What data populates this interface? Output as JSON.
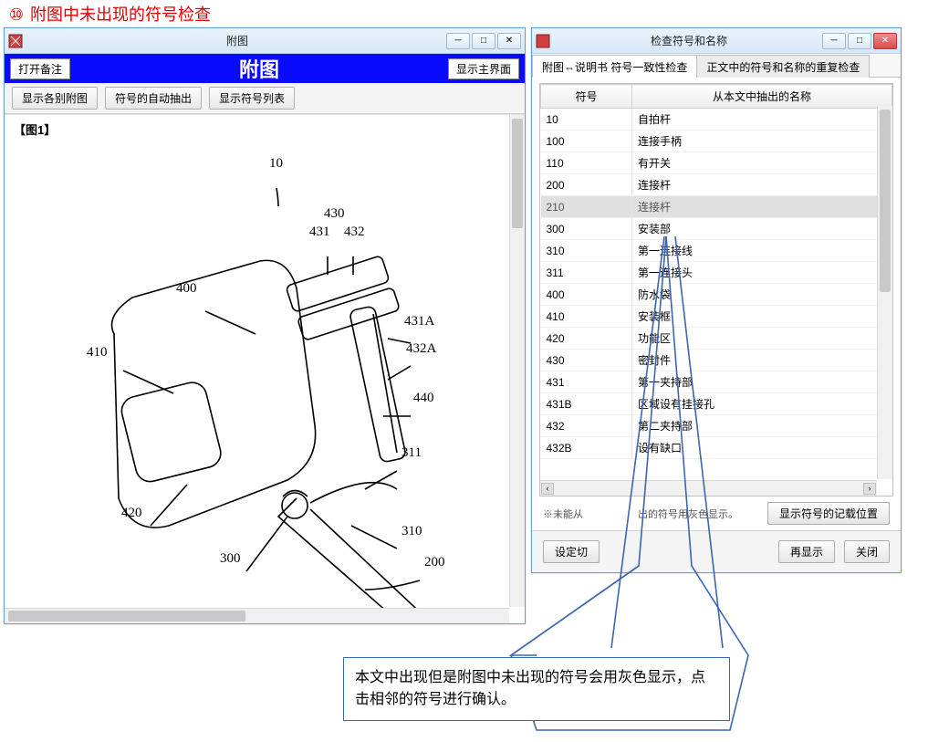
{
  "page_heading_num": "⑩",
  "page_heading_text": "附图中未出现的符号检查",
  "left_window": {
    "title": "附图",
    "open_note_btn": "打开备注",
    "big_title": "附图",
    "show_main_btn": "显示主界面",
    "toolbar": {
      "show_each": "显示各别附图",
      "auto_extract": "符号的自动抽出",
      "show_list": "显示符号列表"
    },
    "figure_label": "【图1】",
    "callouts": {
      "n10": "10",
      "n430": "430",
      "n431": "431",
      "n432": "432",
      "n400": "400",
      "n431A": "431A",
      "n432A": "432A",
      "n410": "410",
      "n440": "440",
      "n311": "311",
      "n420": "420",
      "n300": "300",
      "n310": "310",
      "n200": "200"
    }
  },
  "right_window": {
    "title": "检查符号和名称",
    "tab1": "附图⇔说明书 符号一致性检查",
    "tab2": "正文中的符号和名称的重复检查",
    "col_symbol": "符号",
    "col_name": "从本文中抽出的名称",
    "rows": [
      {
        "sym": "10",
        "name": "自拍杆",
        "grey": false
      },
      {
        "sym": "100",
        "name": "连接手柄",
        "grey": false
      },
      {
        "sym": "110",
        "name": "有开关",
        "grey": false
      },
      {
        "sym": "200",
        "name": "连接杆",
        "grey": false
      },
      {
        "sym": "210",
        "name": "连接杆",
        "grey": true
      },
      {
        "sym": "300",
        "name": "安装部",
        "grey": false
      },
      {
        "sym": "310",
        "name": "第一连接线",
        "grey": false
      },
      {
        "sym": "311",
        "name": "第一连接头",
        "grey": false
      },
      {
        "sym": "400",
        "name": "防水袋",
        "grey": false
      },
      {
        "sym": "410",
        "name": "安装框",
        "grey": false
      },
      {
        "sym": "420",
        "name": "功能区",
        "grey": false
      },
      {
        "sym": "430",
        "name": "密封件",
        "grey": false
      },
      {
        "sym": "431",
        "name": "第一夹持部",
        "grey": false
      },
      {
        "sym": "431B",
        "name": "区域设有挂接孔",
        "grey": false
      },
      {
        "sym": "432",
        "name": "第二夹持部",
        "grey": false
      },
      {
        "sym": "432B",
        "name": "设有缺口",
        "grey": false
      }
    ],
    "note_prefix": "※未能从",
    "note_mid": "出的符号用灰色显示。",
    "show_pos_btn": "显示符号的记载位置",
    "set_switch_btn": "设定切",
    "redisplay_btn": "再显示",
    "close_btn": "关闭"
  },
  "callout_text": "本文中出现但是附图中未出现的符号会用灰色显示，点击相邻的符号进行确认。",
  "colors": {
    "heading": "#e00000",
    "blue_bar": "#0a0aff",
    "window_border": "#6a9fd4",
    "callout_border": "#3a66b0",
    "grey_row": "#e0e0e0"
  }
}
